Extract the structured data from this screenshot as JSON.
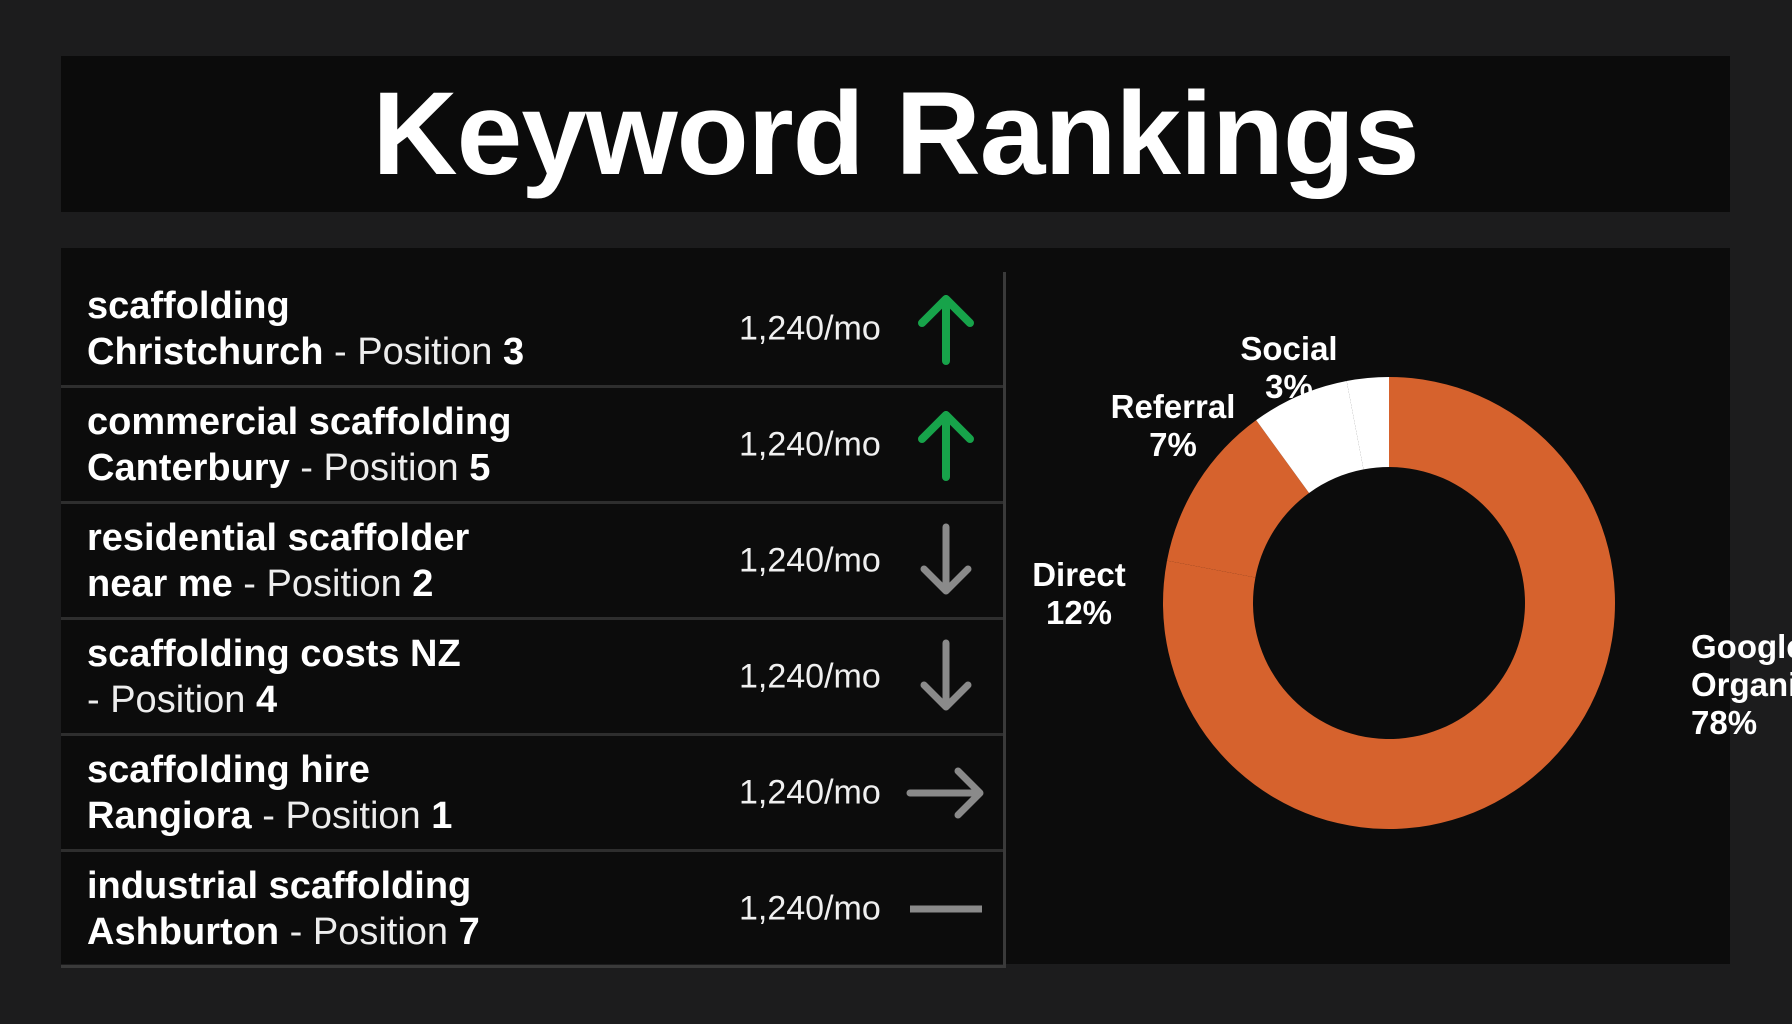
{
  "title": "Keyword Rankings",
  "keywords": [
    {
      "line1": "scaffolding",
      "line2_bold": "Christchurch",
      "position_label": " - Position ",
      "position": "3",
      "volume": "1,240/mo",
      "trend": "up",
      "trend_icon": "arrow-up-icon"
    },
    {
      "line1": "commercial scaffolding",
      "line2_bold": "Canterbury",
      "position_label": " - Position ",
      "position": "5",
      "volume": "1,240/mo",
      "trend": "up",
      "trend_icon": "arrow-up-icon"
    },
    {
      "line1": "residential scaffolder",
      "line2_bold": "near me",
      "position_label": " - Position ",
      "position": "2",
      "volume": "1,240/mo",
      "trend": "down",
      "trend_icon": "arrow-down-icon"
    },
    {
      "line1": "scaffolding costs NZ",
      "line2_bold": "",
      "position_label": "- Position ",
      "position": "4",
      "volume": "1,240/mo",
      "trend": "down",
      "trend_icon": "arrow-down-icon"
    },
    {
      "line1": "scaffolding hire",
      "line2_bold": "Rangiora",
      "position_label": " - Position ",
      "position": "1",
      "volume": "1,240/mo",
      "trend": "right",
      "trend_icon": "arrow-right-icon"
    },
    {
      "line1": "industrial scaffolding",
      "line2_bold": "Ashburton",
      "position_label": " - Position ",
      "position": "7",
      "volume": "1,240/mo",
      "trend": "flat",
      "trend_icon": "dash-icon"
    }
  ],
  "colors": {
    "up": "#17a34a",
    "neutral": "#8a8a8a",
    "organic": "#d6622d",
    "direct": "#d6622d",
    "referral": "#ffffff",
    "social": "#ffffff"
  },
  "chart_data": {
    "type": "pie",
    "variant": "donut",
    "slices": [
      {
        "label": "Google Organic",
        "label_lines": [
          "Google",
          "Organic"
        ],
        "value": 78,
        "value_label": "78%",
        "color": "#d6622d"
      },
      {
        "label": "Direct",
        "label_lines": [
          "Direct"
        ],
        "value": 12,
        "value_label": "12%",
        "color": "#d6622d"
      },
      {
        "label": "Referral",
        "label_lines": [
          "Referral"
        ],
        "value": 7,
        "value_label": "7%",
        "color": "#ffffff"
      },
      {
        "label": "Social",
        "label_lines": [
          "Social"
        ],
        "value": 3,
        "value_label": "3%",
        "color": "#ffffff"
      }
    ]
  }
}
